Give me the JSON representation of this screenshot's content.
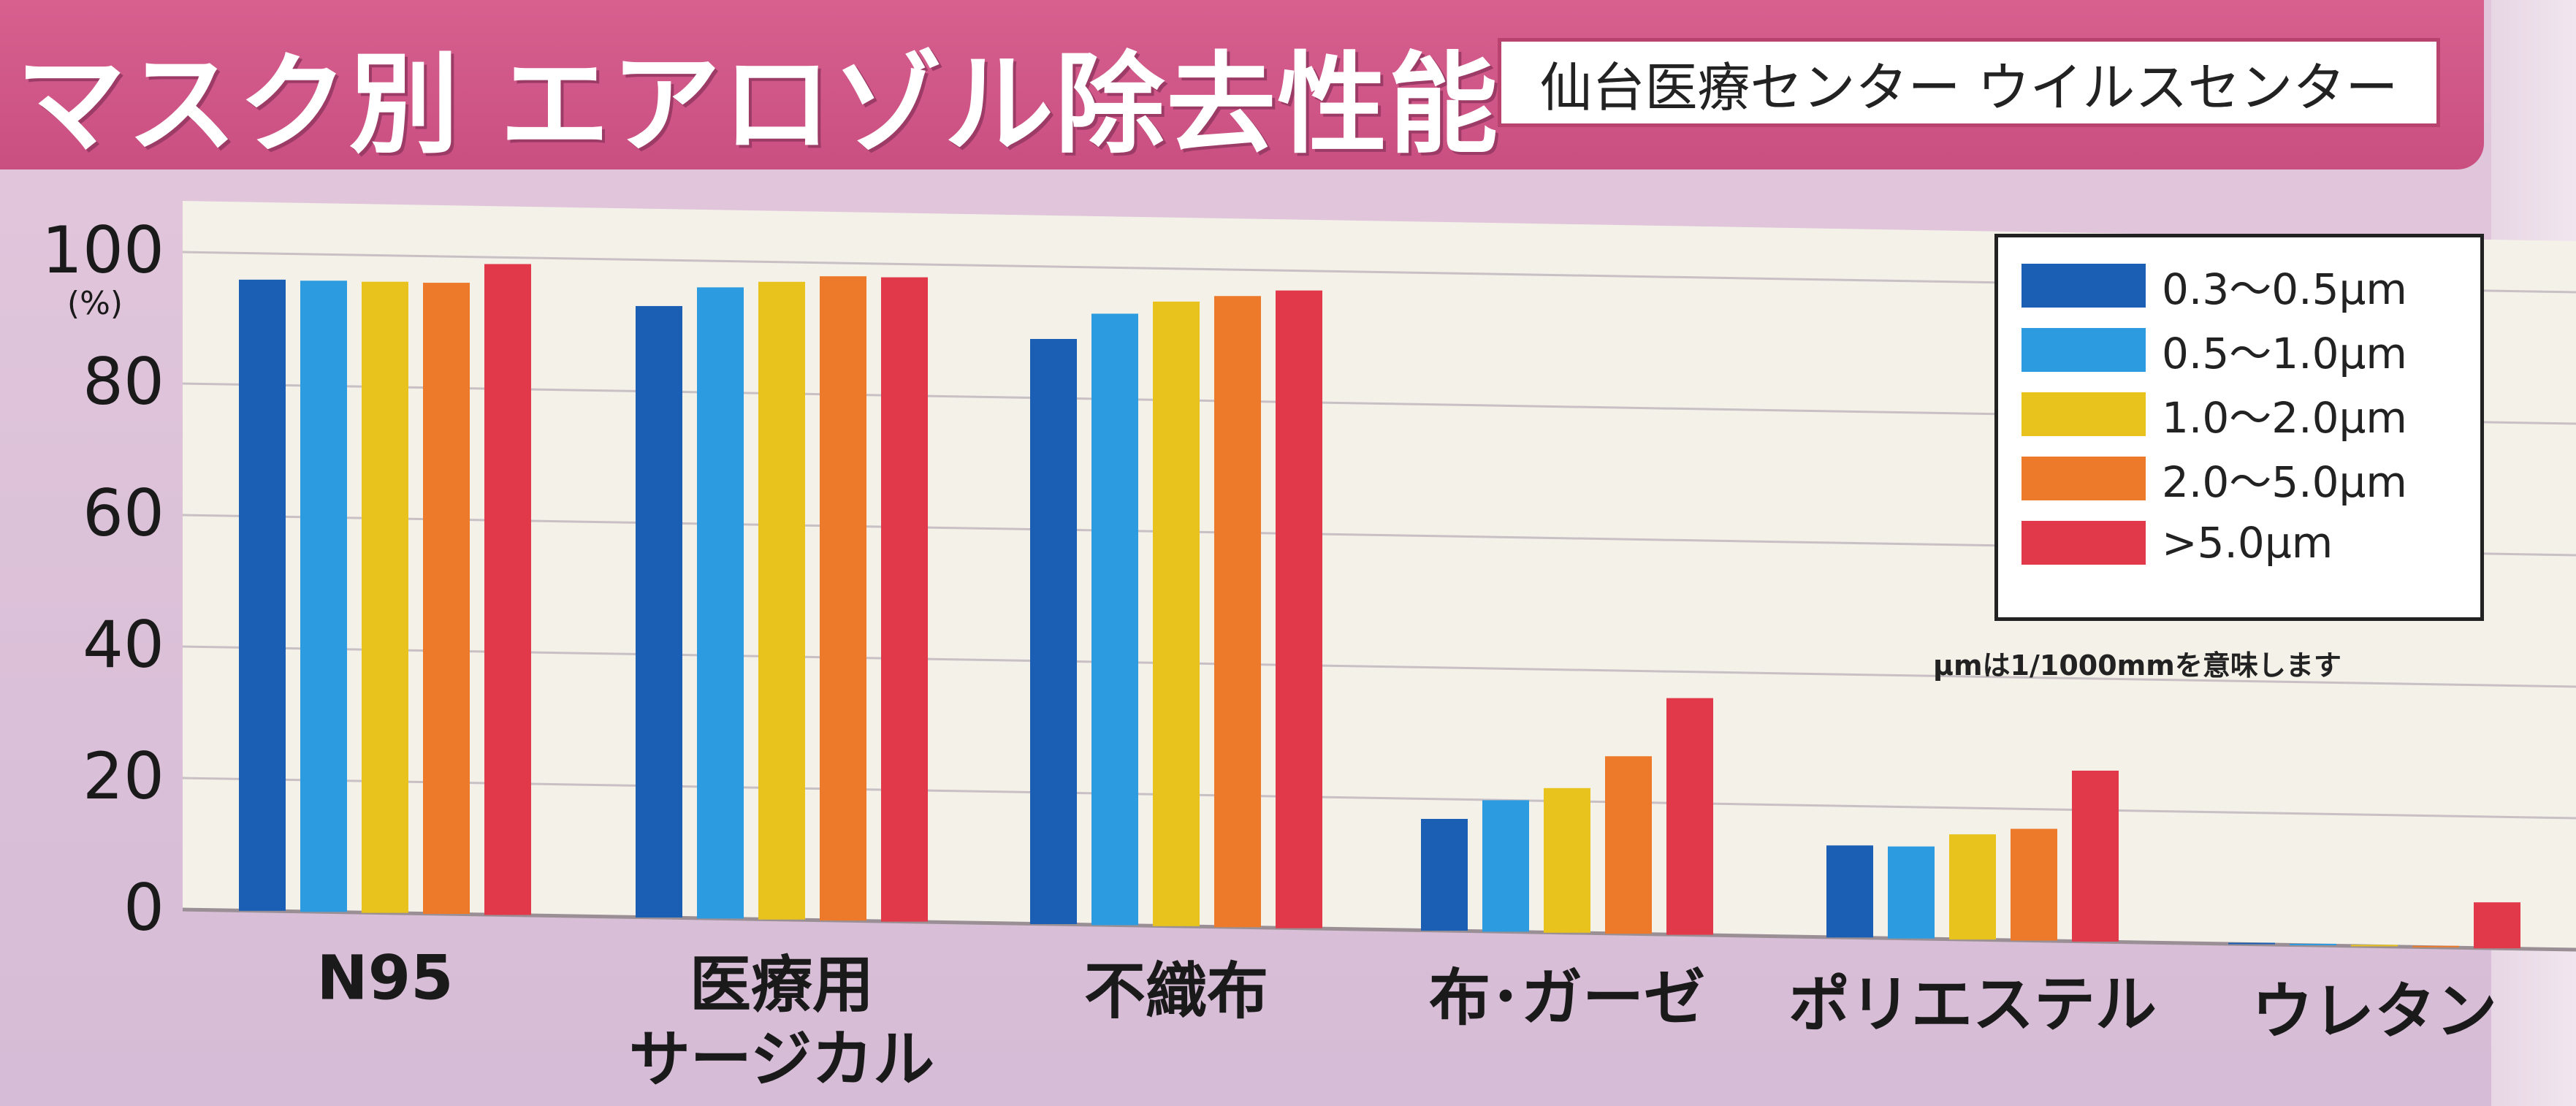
{
  "title": "マスク別 エアロゾル除去性能",
  "source": "仙台医療センター ウイルスセンター",
  "note": "μmは1/1000mmを意味します",
  "chart_data": {
    "type": "bar",
    "title": "マスク別 エアロゾル除去性能",
    "ylabel": "(%)",
    "ylim": [
      0,
      100
    ],
    "yticks": [
      0,
      20,
      40,
      60,
      80,
      100
    ],
    "grid": true,
    "legend_position": "top-right",
    "categories": [
      [
        "N95"
      ],
      [
        "医療用",
        "サージカル"
      ],
      [
        "不織布"
      ],
      [
        "布･ガーゼ"
      ],
      [
        "ポリエステル"
      ],
      [
        "ウレタン"
      ]
    ],
    "series": [
      {
        "name": "0.3〜0.5μm",
        "color": "#1a5fb4",
        "values": [
          96,
          93,
          89,
          17,
          14,
          0
        ]
      },
      {
        "name": "0.5〜1.0μm",
        "color": "#2d9be0",
        "values": [
          96,
          96,
          93,
          20,
          14,
          0
        ]
      },
      {
        "name": "1.0〜2.0μm",
        "color": "#e8c21d",
        "values": [
          96,
          97,
          95,
          22,
          16,
          0
        ]
      },
      {
        "name": "2.0〜5.0μm",
        "color": "#ec7a2a",
        "values": [
          96,
          98,
          96,
          27,
          17,
          0
        ]
      },
      {
        "name": ">5.0μm",
        "color": "#e2394a",
        "values": [
          99,
          98,
          97,
          36,
          26,
          7
        ]
      }
    ]
  }
}
